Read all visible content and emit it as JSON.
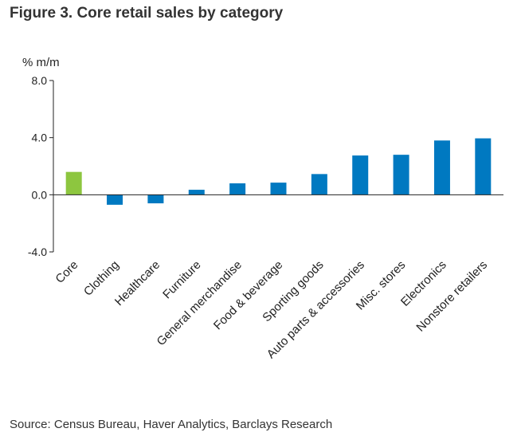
{
  "title": "Figure 3. Core retail sales by category",
  "unit_label": "% m/m",
  "source": "Source: Census Bureau, Haver Analytics, Barclays Research",
  "chart_data": {
    "type": "bar",
    "title": "Figure 3. Core retail sales by category",
    "ylabel": "% m/m",
    "xlabel": "",
    "categories": [
      "Core",
      "Clothing",
      "Healthcare",
      "Furniture",
      "General merchandise",
      "Food & beverage",
      "Sporting goods",
      "Auto parts & accessories",
      "Misc. stores",
      "Electronics",
      "Nonstore retailers"
    ],
    "values": [
      1.6,
      -0.7,
      -0.6,
      0.35,
      0.8,
      0.85,
      1.45,
      2.75,
      2.8,
      3.8,
      3.95
    ],
    "ylim": [
      -4.0,
      8.0
    ],
    "yticks": [
      "8.0",
      "4.0",
      "0.0",
      "-4.0"
    ],
    "grid": false,
    "colors": {
      "highlight": "#8dc63f",
      "bar": "#0079c1",
      "axis": "#222222"
    },
    "highlight_index": 0
  }
}
